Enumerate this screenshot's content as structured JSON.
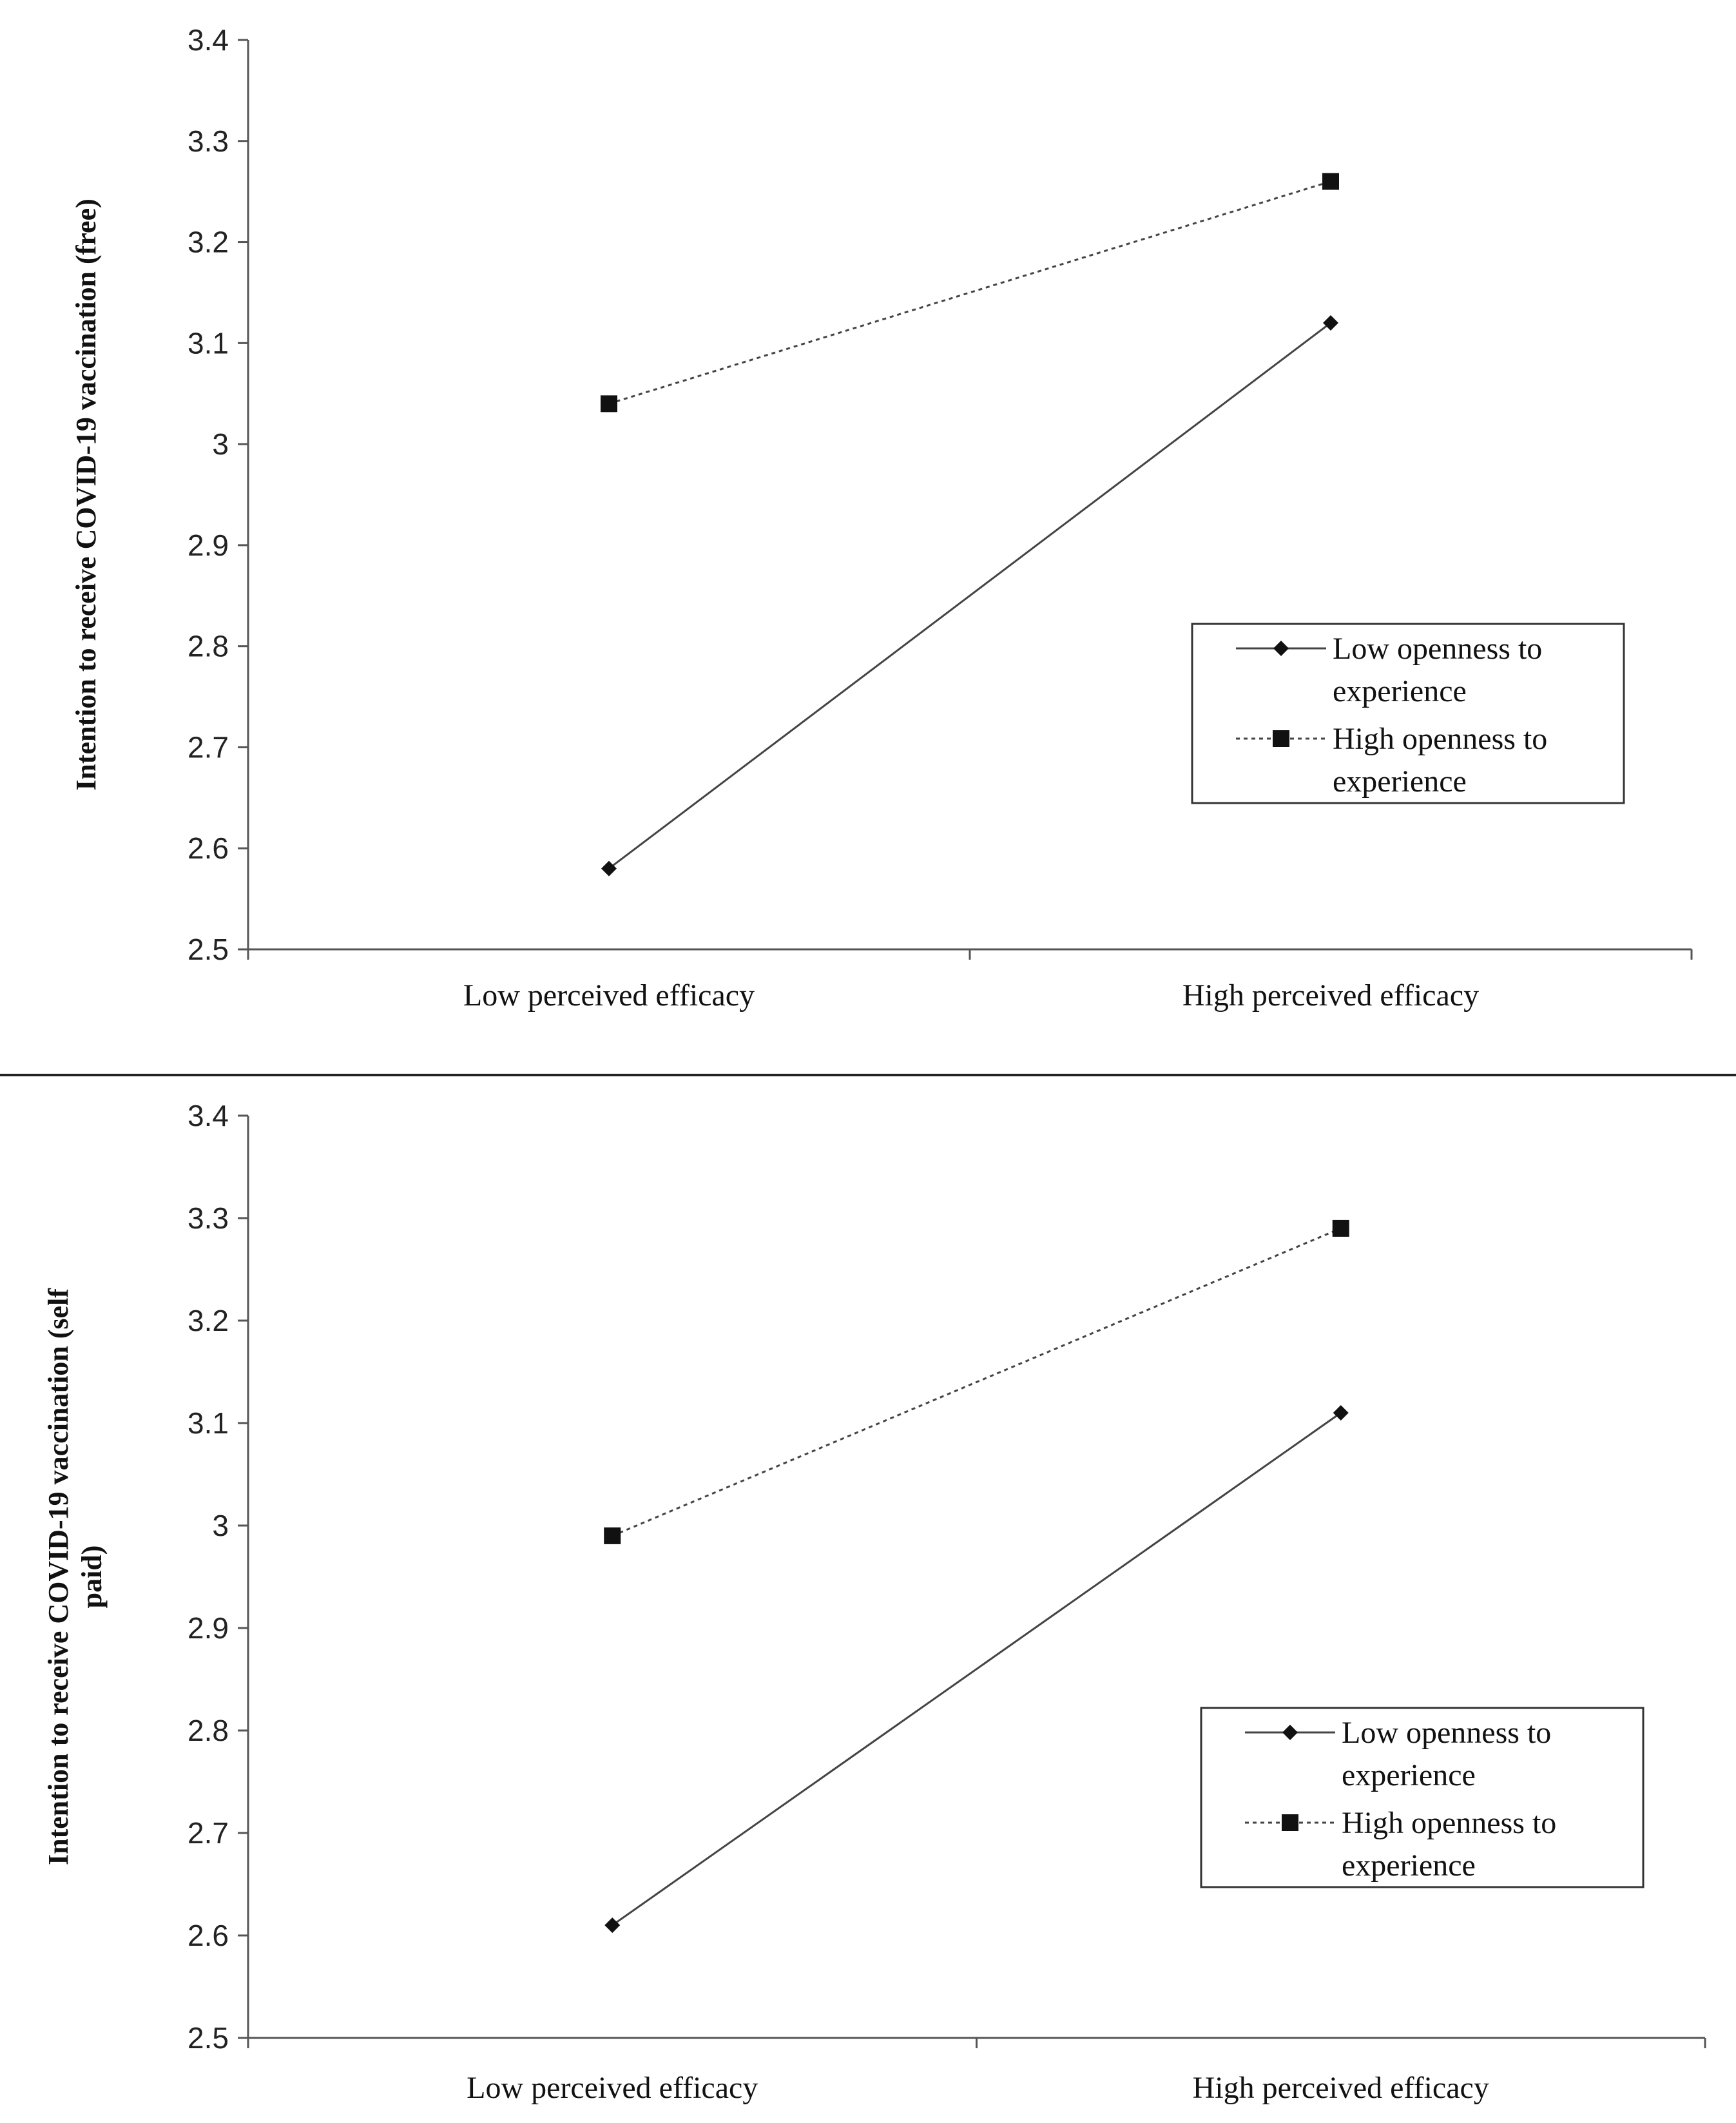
{
  "chart_data": [
    {
      "type": "line",
      "categories": [
        "Low perceived efficacy",
        "High perceived efficacy"
      ],
      "ylabel_lines": [
        "Intention to receive COVID-19 vaccination (free)"
      ],
      "xlabel": "",
      "ylim": [
        2.5,
        3.4
      ],
      "yticks": [
        "2.5",
        "2.6",
        "2.7",
        "2.8",
        "2.9",
        "3",
        "3.1",
        "3.2",
        "3.3",
        "3.4"
      ],
      "series": [
        {
          "name": "Low openness to experience",
          "name_lines": [
            "Low openness to",
            "experience"
          ],
          "marker": "diamond",
          "line": "solid",
          "values": [
            2.58,
            3.12
          ]
        },
        {
          "name": "High openness to experience",
          "name_lines": [
            "High openness to",
            "experience"
          ],
          "marker": "square",
          "line": "dotted",
          "values": [
            3.04,
            3.26
          ]
        }
      ],
      "legend": "center-right",
      "grid": false
    },
    {
      "type": "line",
      "categories": [
        "Low perceived efficacy",
        "High perceived efficacy"
      ],
      "ylabel_lines": [
        "Intention to receive COVID-19 vaccination (self",
        "paid)"
      ],
      "xlabel": "",
      "ylim": [
        2.5,
        3.4
      ],
      "yticks": [
        "2.5",
        "2.6",
        "2.7",
        "2.8",
        "2.9",
        "3",
        "3.1",
        "3.2",
        "3.3",
        "3.4"
      ],
      "series": [
        {
          "name": "Low openness to experience",
          "name_lines": [
            "Low openness to",
            "experience"
          ],
          "marker": "diamond",
          "line": "solid",
          "values": [
            2.61,
            3.11
          ]
        },
        {
          "name": "High openness to experience",
          "name_lines": [
            "High openness to",
            "experience"
          ],
          "marker": "square",
          "line": "dotted",
          "values": [
            2.99,
            3.29
          ]
        }
      ],
      "legend": "center-right",
      "grid": false
    }
  ],
  "colors": {
    "axis": "#555555",
    "line": "#444444",
    "marker": "#111111",
    "divider": "#222222"
  }
}
